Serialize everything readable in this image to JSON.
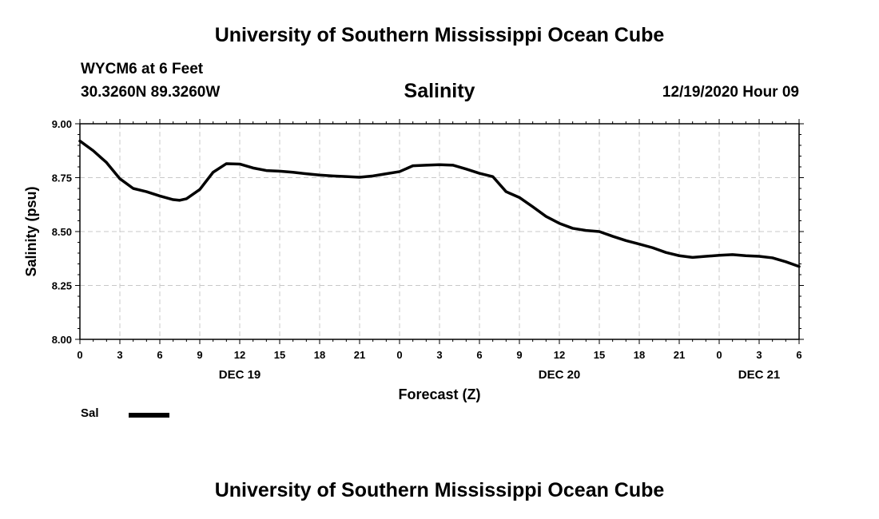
{
  "header": {
    "top_title": "University of Southern Mississippi Ocean Cube",
    "station": "WYCM6 at 6 Feet",
    "coordinates": "30.3260N 89.3260W",
    "plot_title": "Salinity",
    "issued": "12/19/2020 Hour 09",
    "bottom_title": "University of Southern Mississippi Ocean Cube"
  },
  "legend": {
    "label": "Sal"
  },
  "chart_data": {
    "type": "line",
    "title": "Salinity",
    "ylabel": "Salinity (psu)",
    "xlabel": "Forecast (Z)",
    "ylim": [
      8.0,
      9.0
    ],
    "xlim": [
      0,
      54
    ],
    "x_unit": "hours from 00Z Dec 19 2020",
    "y_ticks": [
      "8.00",
      "8.25",
      "8.50",
      "8.75",
      "9.00"
    ],
    "x_tick_labels": [
      "0",
      "3",
      "6",
      "9",
      "12",
      "15",
      "18",
      "21",
      "0",
      "3",
      "6",
      "9",
      "12",
      "15",
      "18",
      "21",
      "0",
      "3",
      "6"
    ],
    "date_labels": [
      {
        "label": "DEC 19",
        "x": 12
      },
      {
        "label": "DEC 20",
        "x": 36
      },
      {
        "label": "DEC 21",
        "x": 51
      }
    ],
    "grid": true,
    "series": [
      {
        "name": "Sal",
        "color": "#000000",
        "x": [
          0,
          1,
          2,
          3,
          4,
          5,
          6,
          7,
          7.5,
          8,
          9,
          10,
          11,
          12,
          13,
          14,
          15,
          16,
          17,
          18,
          19,
          20,
          21,
          22,
          23,
          24,
          25,
          26,
          27,
          28,
          29,
          30,
          31,
          32,
          33,
          34,
          35,
          36,
          37,
          38,
          39,
          40,
          41,
          42,
          43,
          44,
          45,
          46,
          47,
          48,
          49,
          50,
          51,
          52,
          53,
          54
        ],
        "values": [
          8.92,
          8.875,
          8.82,
          8.745,
          8.7,
          8.685,
          8.665,
          8.648,
          8.645,
          8.652,
          8.695,
          8.775,
          8.815,
          8.813,
          8.795,
          8.783,
          8.78,
          8.775,
          8.768,
          8.762,
          8.758,
          8.755,
          8.752,
          8.758,
          8.768,
          8.778,
          8.805,
          8.808,
          8.81,
          8.808,
          8.79,
          8.77,
          8.755,
          8.685,
          8.658,
          8.615,
          8.57,
          8.538,
          8.515,
          8.505,
          8.5,
          8.478,
          8.458,
          8.442,
          8.425,
          8.403,
          8.388,
          8.38,
          8.385,
          8.39,
          8.393,
          8.388,
          8.385,
          8.378,
          8.36,
          8.338
        ]
      }
    ]
  }
}
